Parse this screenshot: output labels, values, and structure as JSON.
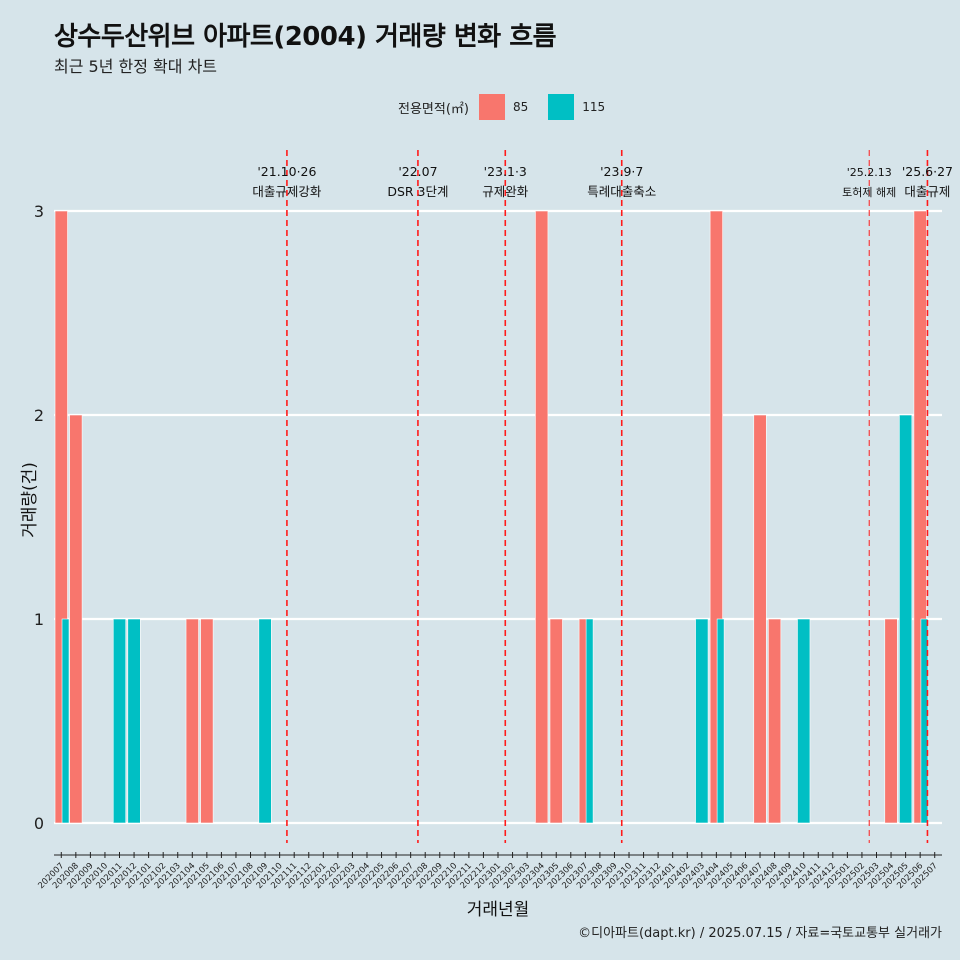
{
  "title": "상수두산위브 아파트(2004) 거래량 변화 흐름",
  "subtitle": "최근 5년 한정 확대 차트",
  "caption": "©디아파트(dapt.kr) / 2025.07.15 / 자료=국토교통부 실거래가",
  "legend": {
    "title": "전용면적(㎡)",
    "items": [
      {
        "label": "85",
        "color": "#f8766d"
      },
      {
        "label": "115",
        "color": "#00bfc4"
      }
    ]
  },
  "chart_data": {
    "type": "bar",
    "xlabel": "거래년월",
    "ylabel": "거래량(건)",
    "ylim": [
      0,
      3
    ],
    "yticks": [
      0,
      1,
      2,
      3
    ],
    "grid": true,
    "legend_position": "top",
    "categories": [
      "202007",
      "202008",
      "202009",
      "202010",
      "202011",
      "202012",
      "202101",
      "202102",
      "202103",
      "202104",
      "202105",
      "202106",
      "202107",
      "202108",
      "202109",
      "202110",
      "202111",
      "202112",
      "202201",
      "202202",
      "202203",
      "202204",
      "202205",
      "202206",
      "202207",
      "202208",
      "202209",
      "202210",
      "202211",
      "202212",
      "202301",
      "202302",
      "202303",
      "202304",
      "202305",
      "202306",
      "202307",
      "202308",
      "202309",
      "202310",
      "202311",
      "202312",
      "202401",
      "202402",
      "202403",
      "202404",
      "202405",
      "202406",
      "202407",
      "202408",
      "202409",
      "202410",
      "202411",
      "202412",
      "202501",
      "202502",
      "202503",
      "202504",
      "202505",
      "202506",
      "202507"
    ],
    "series": [
      {
        "name": "85",
        "color": "#f8766d",
        "values": [
          3,
          2,
          0,
          0,
          0,
          0,
          0,
          0,
          0,
          1,
          1,
          0,
          0,
          0,
          0,
          0,
          0,
          0,
          0,
          0,
          0,
          0,
          0,
          0,
          0,
          0,
          0,
          0,
          0,
          0,
          0,
          0,
          0,
          3,
          1,
          0,
          1,
          0,
          0,
          0,
          0,
          0,
          0,
          0,
          0,
          3,
          0,
          0,
          2,
          1,
          0,
          0,
          0,
          0,
          0,
          0,
          0,
          1,
          0,
          3,
          0
        ]
      },
      {
        "name": "115",
        "color": "#00bfc4",
        "values": [
          1,
          0,
          0,
          0,
          1,
          1,
          0,
          0,
          0,
          0,
          0,
          0,
          0,
          0,
          1,
          0,
          0,
          0,
          0,
          0,
          0,
          0,
          0,
          0,
          0,
          0,
          0,
          0,
          0,
          0,
          0,
          0,
          0,
          0,
          0,
          0,
          1,
          0,
          0,
          0,
          0,
          0,
          0,
          0,
          1,
          1,
          0,
          0,
          0,
          0,
          0,
          1,
          0,
          0,
          0,
          0,
          0,
          0,
          2,
          1,
          0
        ]
      }
    ],
    "annotations": [
      {
        "x": 15.5,
        "date": "'21.10·26",
        "label": "대출규제강화",
        "style": "bold"
      },
      {
        "x": 24.5,
        "date": "'22.07",
        "label": "DSR 3단계",
        "style": "bold"
      },
      {
        "x": 30.5,
        "date": "'23.1·3",
        "label": "규제완화",
        "style": "bold"
      },
      {
        "x": 38.5,
        "date": "'23.9·7",
        "label": "특례대출축소",
        "style": "bold"
      },
      {
        "x": 55.5,
        "date": "'25.2.13",
        "label": "토허제 해제",
        "style": "thin"
      },
      {
        "x": 59.5,
        "date": "'25.6·27",
        "label": "대출규제",
        "style": "bold"
      }
    ]
  }
}
